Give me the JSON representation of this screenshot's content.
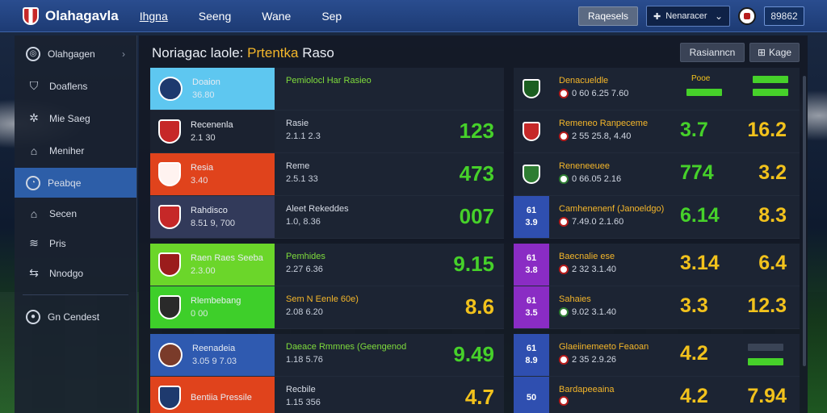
{
  "app": {
    "title": "Olahagavla"
  },
  "topnav": [
    "Ihgna",
    "Seeng",
    "Wane",
    "Sep"
  ],
  "top_right": {
    "search_btn": "Raqesels",
    "manager_select": "Nenaracer",
    "account_btn": "89862"
  },
  "sidebar": {
    "items": [
      {
        "label": "Olahgagen",
        "icon": "search-icon"
      },
      {
        "label": "Doaflens",
        "icon": "shield-icon"
      },
      {
        "label": "Mie Saeg",
        "icon": "gear-icon"
      },
      {
        "label": "Meniher",
        "icon": "bank-icon"
      },
      {
        "label": "Peabqe",
        "icon": "stadium-icon"
      },
      {
        "label": "Secen",
        "icon": "home-icon"
      },
      {
        "label": "Pris",
        "icon": "tactics-icon"
      },
      {
        "label": "Nnodgo",
        "icon": "transfer-icon"
      }
    ],
    "bottom_item": {
      "label": "Gn Cendest",
      "icon": "ball-icon"
    }
  },
  "main": {
    "title_prefix": "Noriagac laole:",
    "title_highlight": "Prtentka",
    "title_suffix": "Raso",
    "btn_primary": "Rasianncn",
    "btn_secondary": "Kage"
  },
  "left_rows": [
    {
      "name": "Doaion",
      "sub": "36.80",
      "info1": "Pemiolocl Har Rasieo",
      "info2": "",
      "num": "",
      "color": "#5ec7f0",
      "crest": "#1e3a6e",
      "accent": "green"
    },
    {
      "name": "Recenenla",
      "sub": "2.1 30",
      "info1": "Rasie",
      "info2": "2.1.1 2.3",
      "num": "123",
      "color": "#1b2230",
      "crest": "#c62828",
      "accent": ""
    },
    {
      "name": "Resia",
      "sub": "3.40",
      "info1": "Reme",
      "info2": "2.5.1 33",
      "num": "473",
      "color": "#e0431c",
      "crest": "#fff3f0",
      "accent": ""
    },
    {
      "name": "Rahdisco",
      "sub": "8.51 9, 700",
      "info1": "Aleet Rekeddes",
      "info2": "1.0, 8.36",
      "num": "007",
      "color": "#323a5a",
      "crest": "#c62828",
      "accent": ""
    },
    {
      "name": "Raen Raes Seeba",
      "sub": "2.3.00",
      "info1": "Pemhides",
      "info2": "2.27 6.36",
      "num": "9.15",
      "color": "#6bd62a",
      "crest": "#9b1c1c",
      "accent": "green"
    },
    {
      "name": "Rlembebang",
      "sub": "0 00",
      "info1": "Sem N Eenle 60e)",
      "info2": "2.08 6.20",
      "num": "8.6",
      "color": "#3ecf2a",
      "crest": "#2a2a2a",
      "accent": "yellow"
    },
    {
      "name": "Reenadeia",
      "sub": "3.05 9 7.03",
      "info1": "Daeace Rmmnes (Geengenod",
      "info2": "1.18 5.76",
      "num": "9.49",
      "color": "#2f5ab0",
      "crest": "#7a3b2a",
      "accent": "green"
    },
    {
      "name": "Bentiia Pressile",
      "sub": "",
      "info1": "Recbile",
      "info2": "1.15 356",
      "num": "4.7",
      "color": "#e0431c",
      "crest": "#1e3a6e",
      "accent": ""
    }
  ],
  "right_rows": [
    {
      "tag1": "",
      "tag2": "",
      "name": "Denacueldle",
      "sub": "0 60 6.25 7.60",
      "n1": "",
      "n2": "",
      "bar": "Pooe",
      "color": "#1c2433"
    },
    {
      "tag1": "",
      "tag2": "",
      "name": "Remeneo Ranpeceme",
      "sub": "2 55 25.8, 4.40",
      "n1": "3.7",
      "n2": "16.2",
      "bar": "",
      "color": "#1c2433"
    },
    {
      "tag1": "",
      "tag2": "",
      "name": "Reneneeuee",
      "sub": "0 66.05 2.16",
      "n1": "774",
      "n2": "3.2",
      "bar": "",
      "color": "#1c2433"
    },
    {
      "tag1": "61",
      "tag2": "3.9",
      "name": "Camhenenenf (Janoeldgo)",
      "sub": "7.49.0 2.1.60",
      "n1": "6.14",
      "n2": "8.3",
      "bar": "",
      "color": "#2f4fb0"
    },
    {
      "tag1": "61",
      "tag2": "3.8",
      "name": "Baecnalie ese",
      "sub": "2 32 3.1.40",
      "n1": "3.14",
      "n2": "6.4",
      "bar": "",
      "color": "#8a2cc4"
    },
    {
      "tag1": "61",
      "tag2": "3.5",
      "name": "Sahaies",
      "sub": "9.02 3.1.40",
      "n1": "3.3",
      "n2": "12.3",
      "bar": "",
      "color": "#8a2cc4"
    },
    {
      "tag1": "61",
      "tag2": "8.9",
      "name": "Glaeiinemeeto Feaoan",
      "sub": "2 35 2.9.26",
      "n1": "4.2",
      "n2": "",
      "bar": "",
      "color": "#2f4fb0"
    },
    {
      "tag1": "50",
      "tag2": "",
      "name": "Bardapeeaina",
      "sub": "",
      "n1": "4.2",
      "n2": "7.94",
      "bar": "",
      "color": "#2f4fb0"
    }
  ]
}
